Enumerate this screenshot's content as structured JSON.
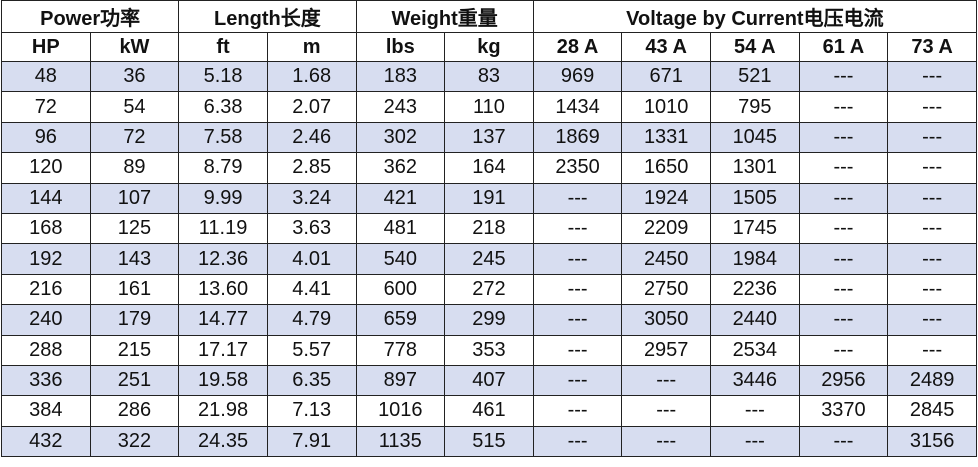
{
  "table": {
    "groups": [
      "Power功率",
      "Length长度",
      "Weight重量",
      "Voltage by Current电压电流"
    ],
    "columns": [
      "HP",
      "kW",
      "ft",
      "m",
      "lbs",
      "kg",
      "28 A",
      "43 A",
      "54 A",
      "61 A",
      "73 A"
    ],
    "rows": [
      [
        "48",
        "36",
        "5.18",
        "1.68",
        "183",
        "83",
        "969",
        "671",
        "521",
        "---",
        "---"
      ],
      [
        "72",
        "54",
        "6.38",
        "2.07",
        "243",
        "110",
        "1434",
        "1010",
        "795",
        "---",
        "---"
      ],
      [
        "96",
        "72",
        "7.58",
        "2.46",
        "302",
        "137",
        "1869",
        "1331",
        "1045",
        "---",
        "---"
      ],
      [
        "120",
        "89",
        "8.79",
        "2.85",
        "362",
        "164",
        "2350",
        "1650",
        "1301",
        "---",
        "---"
      ],
      [
        "144",
        "107",
        "9.99",
        "3.24",
        "421",
        "191",
        "---",
        "1924",
        "1505",
        "---",
        "---"
      ],
      [
        "168",
        "125",
        "11.19",
        "3.63",
        "481",
        "218",
        "---",
        "2209",
        "1745",
        "---",
        "---"
      ],
      [
        "192",
        "143",
        "12.36",
        "4.01",
        "540",
        "245",
        "---",
        "2450",
        "1984",
        "---",
        "---"
      ],
      [
        "216",
        "161",
        "13.60",
        "4.41",
        "600",
        "272",
        "---",
        "2750",
        "2236",
        "---",
        "---"
      ],
      [
        "240",
        "179",
        "14.77",
        "4.79",
        "659",
        "299",
        "---",
        "3050",
        "2440",
        "---",
        "---"
      ],
      [
        "288",
        "215",
        "17.17",
        "5.57",
        "778",
        "353",
        "---",
        "2957",
        "2534",
        "---",
        "---"
      ],
      [
        "336",
        "251",
        "19.58",
        "6.35",
        "897",
        "407",
        "---",
        "---",
        "3446",
        "2956",
        "2489"
      ],
      [
        "384",
        "286",
        "21.98",
        "7.13",
        "1016",
        "461",
        "---",
        "---",
        "---",
        "3370",
        "2845"
      ],
      [
        "432",
        "322",
        "24.35",
        "7.91",
        "1135",
        "515",
        "---",
        "---",
        "---",
        "---",
        "3156"
      ]
    ]
  }
}
